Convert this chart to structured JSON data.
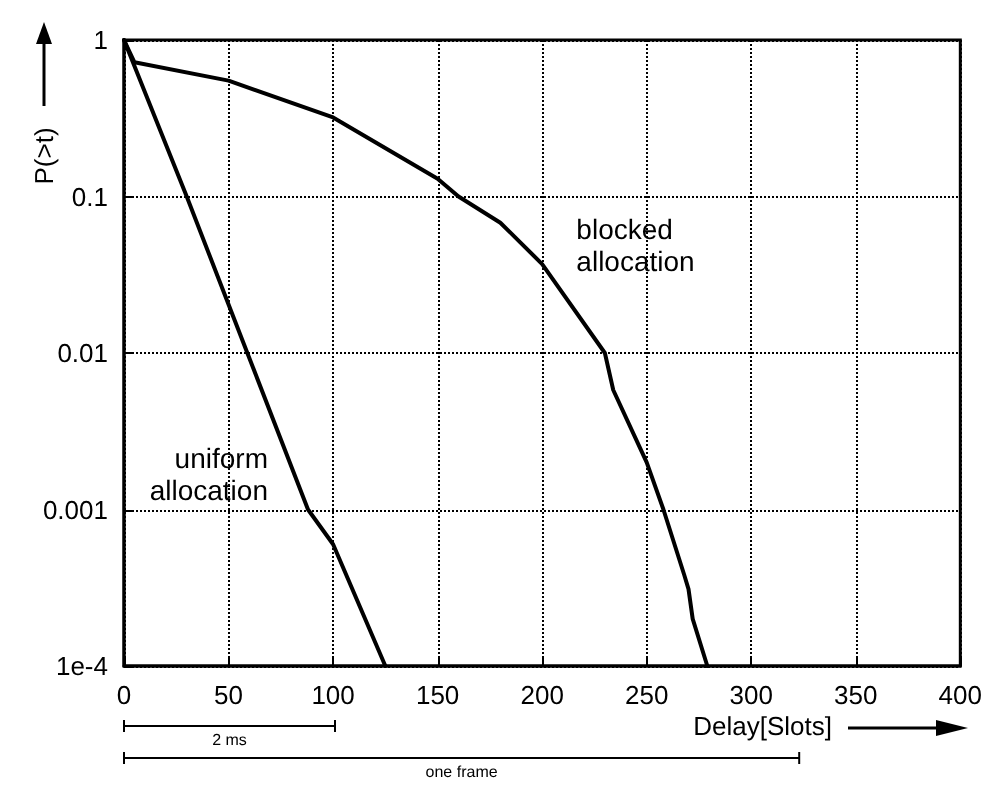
{
  "chart_data": {
    "type": "line",
    "xlabel": "Delay[Slots]",
    "ylabel": "P(>t)",
    "xlim": [
      0,
      400
    ],
    "xticks": [
      0,
      50,
      100,
      150,
      200,
      250,
      300,
      350,
      400
    ],
    "ylim": [
      0.0001,
      1
    ],
    "yticks": [
      {
        "value": 0.0001,
        "label": "1e-4"
      },
      0.001,
      0.01,
      0.1,
      1
    ],
    "log": "y",
    "grid": true,
    "legend": false,
    "marker": "none",
    "line_style": "solid",
    "series": [
      {
        "name": "blocked allocation",
        "color": "#000000",
        "x": [
          0,
          5,
          50,
          100,
          150,
          160,
          180,
          200,
          230,
          234,
          250,
          258,
          268,
          270,
          272,
          279
        ],
        "values": [
          1,
          0.72,
          0.55,
          0.32,
          0.13,
          0.1,
          0.068,
          0.037,
          0.01,
          0.0058,
          0.002,
          0.001,
          0.00038,
          0.00031,
          0.0002,
          0.0001
        ]
      },
      {
        "name": "uniform allocation",
        "color": "#000000",
        "x": [
          0,
          30,
          59,
          88,
          100,
          125
        ],
        "values": [
          1,
          0.1,
          0.01,
          0.001,
          0.0006,
          0.0001
        ]
      }
    ],
    "annotations": [
      "2 ms",
      "one frame"
    ]
  }
}
